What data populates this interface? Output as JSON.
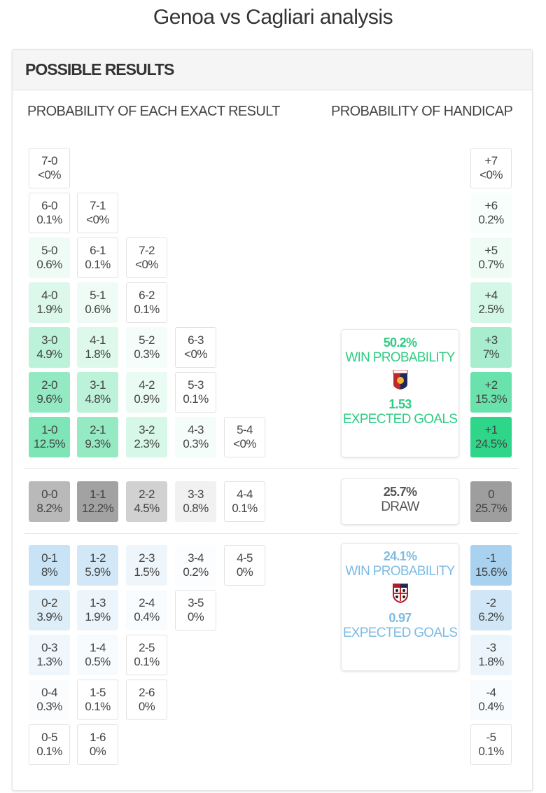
{
  "title": "Genoa vs Cagliari analysis",
  "section_title": "POSSIBLE RESULTS",
  "exact_header": "PROBABILITY OF EACH EXACT RESULT",
  "handicap_header": "PROBABILITY OF HANDICAP",
  "colors": {
    "home": "#2fd68a",
    "draw": "#9e9e9e",
    "away": "#a8d2ef",
    "home_text": "#2ecc83",
    "away_text": "#7dbbe3"
  },
  "home_rows": [
    [
      {
        "score": "7-0",
        "prob": "<0%"
      }
    ],
    [
      {
        "score": "6-0",
        "prob": "0.1%"
      },
      {
        "score": "7-1",
        "prob": "<0%"
      }
    ],
    [
      {
        "score": "5-0",
        "prob": "0.6%"
      },
      {
        "score": "6-1",
        "prob": "0.1%"
      },
      {
        "score": "7-2",
        "prob": "<0%"
      }
    ],
    [
      {
        "score": "4-0",
        "prob": "1.9%"
      },
      {
        "score": "5-1",
        "prob": "0.6%"
      },
      {
        "score": "6-2",
        "prob": "0.1%"
      }
    ],
    [
      {
        "score": "3-0",
        "prob": "4.9%"
      },
      {
        "score": "4-1",
        "prob": "1.8%"
      },
      {
        "score": "5-2",
        "prob": "0.3%"
      },
      {
        "score": "6-3",
        "prob": "<0%"
      }
    ],
    [
      {
        "score": "2-0",
        "prob": "9.6%"
      },
      {
        "score": "3-1",
        "prob": "4.8%"
      },
      {
        "score": "4-2",
        "prob": "0.9%"
      },
      {
        "score": "5-3",
        "prob": "0.1%"
      }
    ],
    [
      {
        "score": "1-0",
        "prob": "12.5%"
      },
      {
        "score": "2-1",
        "prob": "9.3%"
      },
      {
        "score": "3-2",
        "prob": "2.3%"
      },
      {
        "score": "4-3",
        "prob": "0.3%"
      },
      {
        "score": "5-4",
        "prob": "<0%"
      }
    ]
  ],
  "draw_row": [
    {
      "score": "0-0",
      "prob": "8.2%"
    },
    {
      "score": "1-1",
      "prob": "12.2%"
    },
    {
      "score": "2-2",
      "prob": "4.5%"
    },
    {
      "score": "3-3",
      "prob": "0.8%"
    },
    {
      "score": "4-4",
      "prob": "0.1%"
    }
  ],
  "away_rows": [
    [
      {
        "score": "0-1",
        "prob": "8%"
      },
      {
        "score": "1-2",
        "prob": "5.9%"
      },
      {
        "score": "2-3",
        "prob": "1.5%"
      },
      {
        "score": "3-4",
        "prob": "0.2%"
      },
      {
        "score": "4-5",
        "prob": "0%"
      }
    ],
    [
      {
        "score": "0-2",
        "prob": "3.9%"
      },
      {
        "score": "1-3",
        "prob": "1.9%"
      },
      {
        "score": "2-4",
        "prob": "0.4%"
      },
      {
        "score": "3-5",
        "prob": "0%"
      }
    ],
    [
      {
        "score": "0-3",
        "prob": "1.3%"
      },
      {
        "score": "1-4",
        "prob": "0.5%"
      },
      {
        "score": "2-5",
        "prob": "0.1%"
      }
    ],
    [
      {
        "score": "0-4",
        "prob": "0.3%"
      },
      {
        "score": "1-5",
        "prob": "0.1%"
      },
      {
        "score": "2-6",
        "prob": "0%"
      }
    ],
    [
      {
        "score": "0-5",
        "prob": "0.1%"
      },
      {
        "score": "1-6",
        "prob": "0%"
      }
    ]
  ],
  "handicap_home": [
    {
      "line": "+7",
      "prob": "<0%"
    },
    {
      "line": "+6",
      "prob": "0.2%"
    },
    {
      "line": "+5",
      "prob": "0.7%"
    },
    {
      "line": "+4",
      "prob": "2.5%"
    },
    {
      "line": "+3",
      "prob": "7%"
    },
    {
      "line": "+2",
      "prob": "15.3%"
    },
    {
      "line": "+1",
      "prob": "24.5%"
    }
  ],
  "handicap_draw": {
    "line": "0",
    "prob": "25.7%"
  },
  "handicap_away": [
    {
      "line": "-1",
      "prob": "15.6%"
    },
    {
      "line": "-2",
      "prob": "6.2%"
    },
    {
      "line": "-3",
      "prob": "1.8%"
    },
    {
      "line": "-4",
      "prob": "0.4%"
    },
    {
      "line": "-5",
      "prob": "0.1%"
    }
  ],
  "home_summary": {
    "win_prob": "50.2%",
    "win_label": "WIN PROBABILITY",
    "xg": "1.53",
    "xg_label": "EXPECTED GOALS",
    "crest": "genoa-crest"
  },
  "draw_summary": {
    "prob": "25.7%",
    "label": "DRAW"
  },
  "away_summary": {
    "win_prob": "24.1%",
    "win_label": "WIN PROBABILITY",
    "xg": "0.97",
    "xg_label": "EXPECTED GOALS",
    "crest": "cagliari-crest"
  }
}
